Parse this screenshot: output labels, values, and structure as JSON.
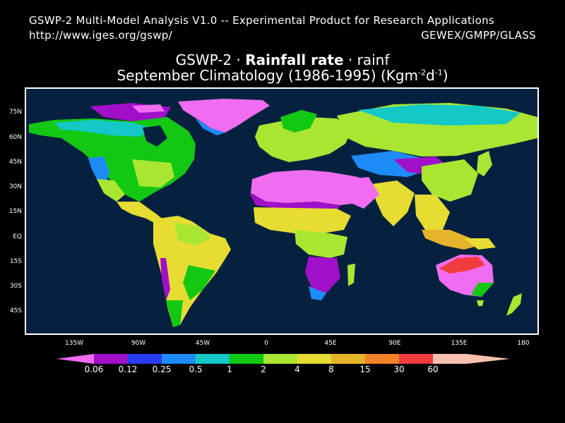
{
  "header": {
    "line1": "GSWP-2 Multi-Model Analysis V1.0 -- Experimental Product for Research Applications",
    "url": "http://www.iges.org/gswp/",
    "right": "GEWEX/GMPP/GLASS"
  },
  "title": {
    "prefix": "GSWP-2 · ",
    "bold": "Rainfall rate",
    "suffix": " · rainf",
    "line2_main": "September Climatology (1986-1995) (Kgm",
    "sup1": "-2",
    "mid": "d",
    "sup2": "-1",
    "close": ")"
  },
  "map": {
    "lat_labels": [
      "75N",
      "60N",
      "45N",
      "30N",
      "15N",
      "EQ",
      "15S",
      "30S",
      "45S"
    ],
    "lon_labels": [
      "135W",
      "90W",
      "45W",
      "0",
      "45E",
      "90E",
      "135E",
      "180"
    ],
    "ocean_color": "#05213f"
  },
  "colorbar": {
    "labels": [
      "0.06",
      "0.12",
      "0.25",
      "0.5",
      "1",
      "2",
      "4",
      "8",
      "15",
      "30",
      "60"
    ],
    "colors": [
      "#f06cf0",
      "#a010c8",
      "#2a3cf0",
      "#1e8cf8",
      "#14c8c8",
      "#12c812",
      "#a8e632",
      "#e6dc32",
      "#e6b42a",
      "#f08228",
      "#f03c3c",
      "#f8c0b0"
    ]
  }
}
